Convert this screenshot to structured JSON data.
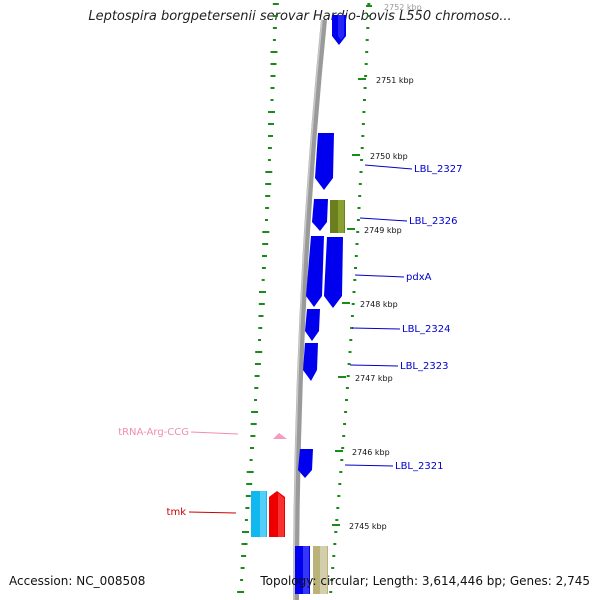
{
  "title": "Leptospira borgpetersenii serovar Hardjo-bovis L550 chromoso...",
  "footer": {
    "accession": "Accession: NC_008508",
    "summary": "Topology: circular; Length: 3,614,446 bp; Genes: 2,745"
  },
  "ticks": [
    {
      "label": "2752 kbp"
    },
    {
      "label": "2751 kbp"
    },
    {
      "label": "2750 kbp"
    },
    {
      "label": "2749 kbp"
    },
    {
      "label": "2748 kbp"
    },
    {
      "label": "2747 kbp"
    },
    {
      "label": "2746 kbp"
    },
    {
      "label": "2745 kbp"
    }
  ],
  "features": [
    {
      "label": "LBL_2327",
      "color": "#0000cc"
    },
    {
      "label": "LBL_2326",
      "color": "#0000cc"
    },
    {
      "label": "pdxA",
      "color": "#0000cc"
    },
    {
      "label": "LBL_2324",
      "color": "#0000cc"
    },
    {
      "label": "LBL_2323",
      "color": "#0000cc"
    },
    {
      "label": "tRNA-Arg-CCG",
      "color": "#f08cb4"
    },
    {
      "label": "LBL_2321",
      "color": "#0000cc"
    },
    {
      "label": "tmk",
      "color": "#cc0000"
    }
  ],
  "colors": {
    "backbone": "#8a8a8a",
    "cds": "#0000ee",
    "cds_highlight": "#6b7f1e",
    "trna": "#f39bc0",
    "tmk_outer": "#11b8f0",
    "tmk_inner": "#ee0000",
    "pale_cds": "#c8c49a",
    "gc_dash": "#1a8a1a"
  }
}
